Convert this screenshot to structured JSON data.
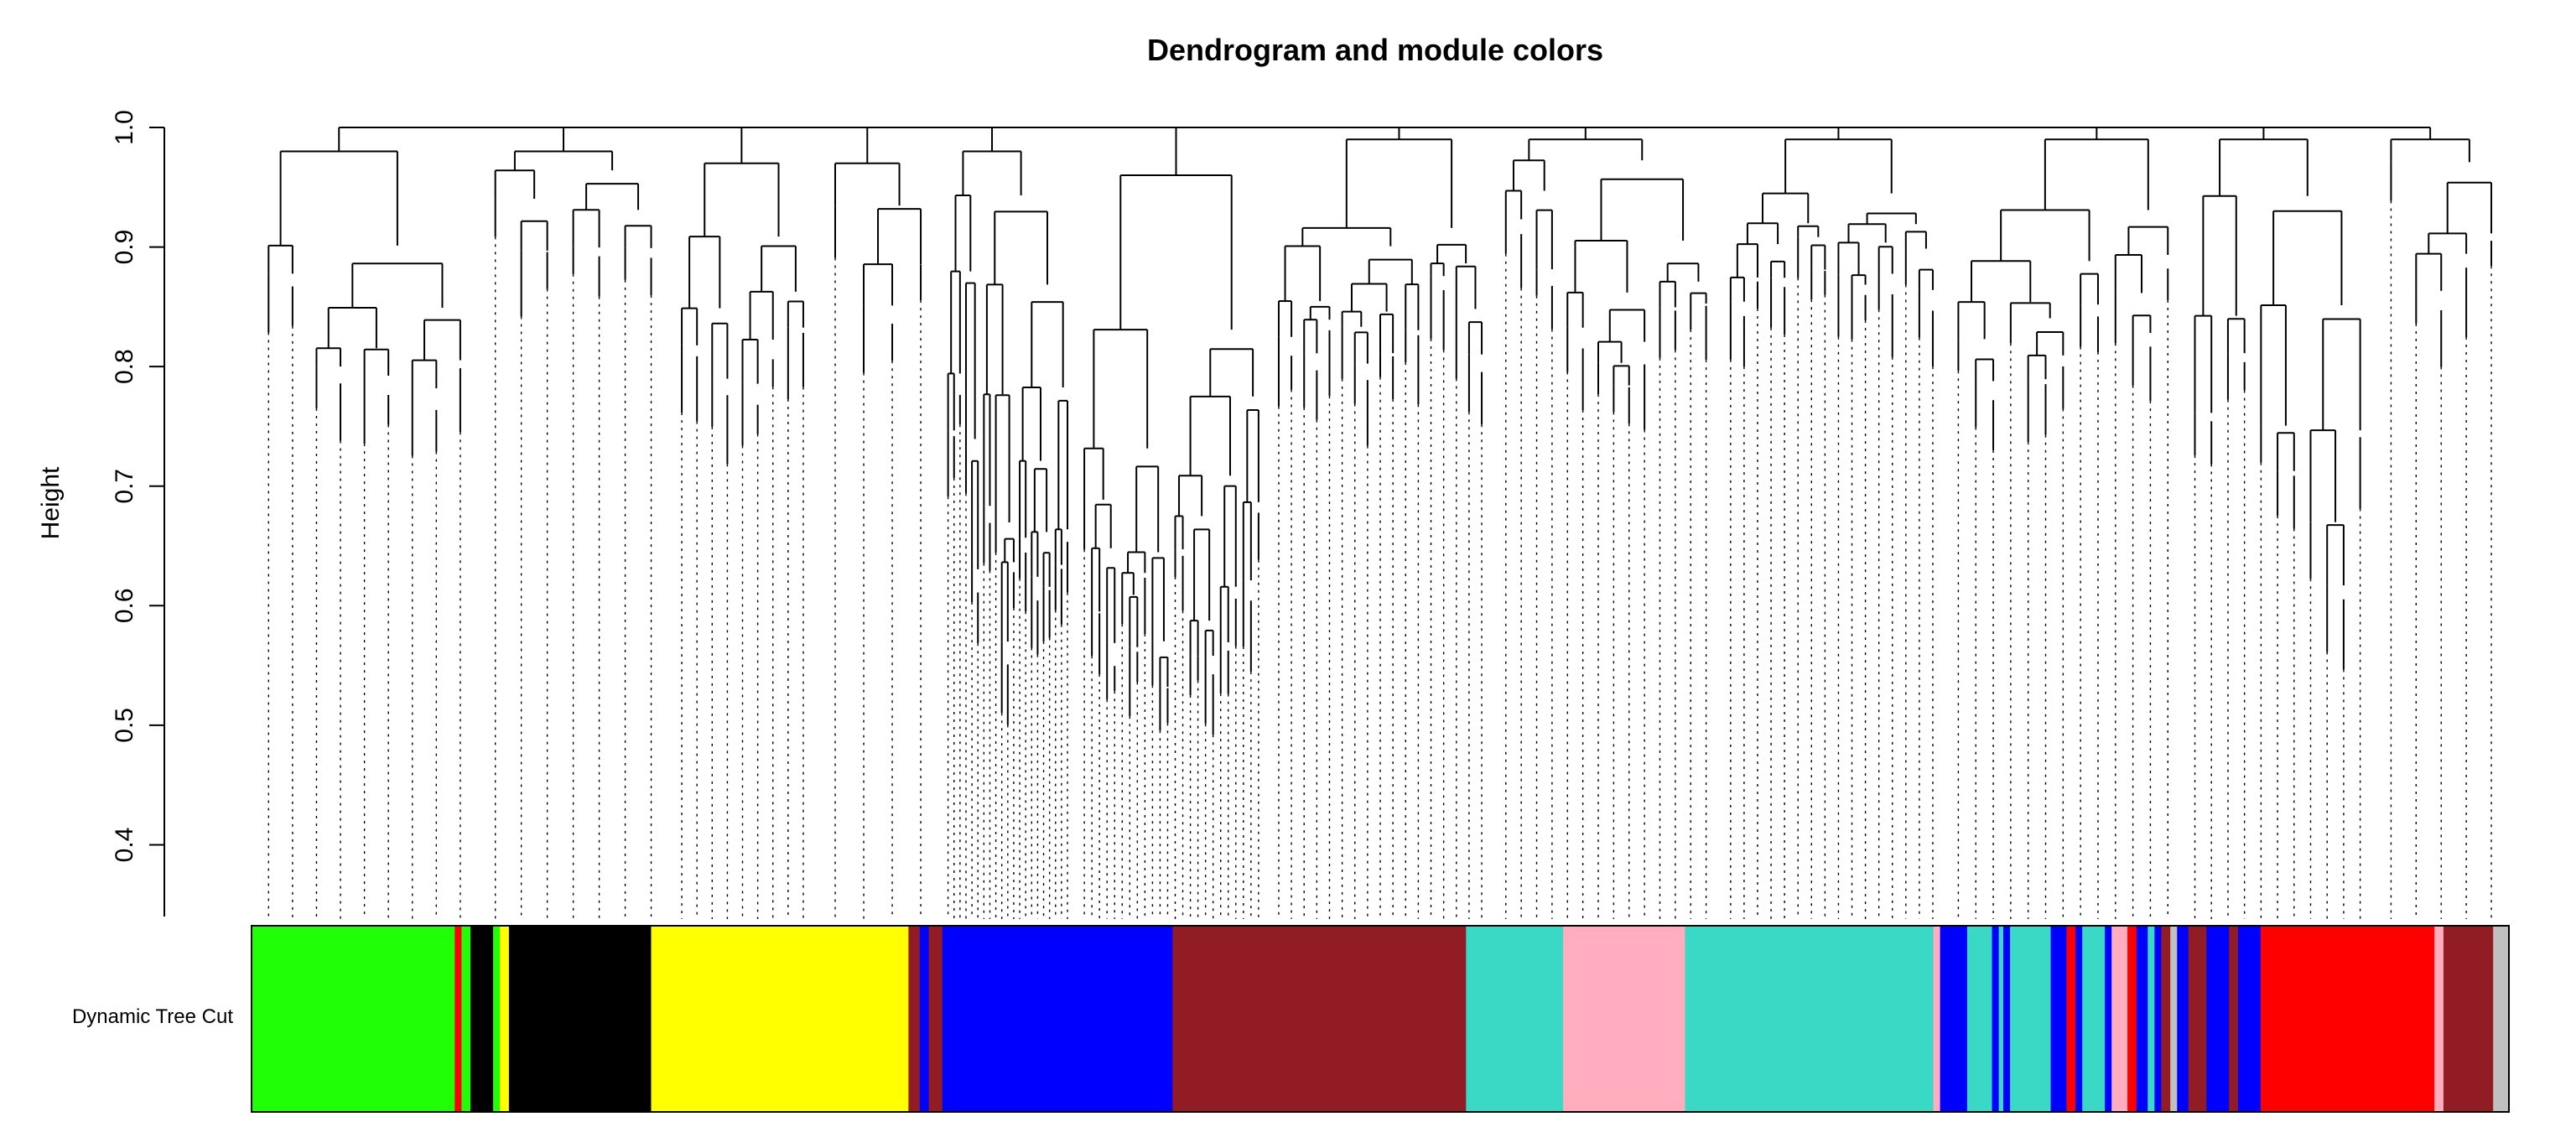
{
  "chart_data": {
    "type": "dendrogram",
    "title": "Dendrogram and module colors",
    "ylabel": "Height",
    "xlabel": "",
    "ylim": [
      0.34,
      1.0
    ],
    "y_ticks": [
      "0.4",
      "0.5",
      "0.6",
      "0.7",
      "0.8",
      "0.9",
      "1.0"
    ],
    "color_row_label": "Dynamic Tree Cut",
    "module_colors": {
      "green": "#21ff06",
      "red": "#ff0000",
      "black": "#000000",
      "yellow": "#ffff00",
      "blue": "#0000ff",
      "brown": "#911c23",
      "turquoise": "#3ad9c6",
      "pink": "#ffadbf",
      "grey": "#c0c0c0"
    },
    "color_segments": [
      {
        "color": "green",
        "from": 0.0,
        "to": 0.09
      },
      {
        "color": "red",
        "from": 0.09,
        "to": 0.093
      },
      {
        "color": "green",
        "from": 0.093,
        "to": 0.097
      },
      {
        "color": "black",
        "from": 0.097,
        "to": 0.107
      },
      {
        "color": "green",
        "from": 0.107,
        "to": 0.11
      },
      {
        "color": "yellow",
        "from": 0.11,
        "to": 0.114
      },
      {
        "color": "black",
        "from": 0.114,
        "to": 0.177
      },
      {
        "color": "yellow",
        "from": 0.177,
        "to": 0.291
      },
      {
        "color": "brown",
        "from": 0.291,
        "to": 0.296
      },
      {
        "color": "blue",
        "from": 0.296,
        "to": 0.3
      },
      {
        "color": "brown",
        "from": 0.3,
        "to": 0.306
      },
      {
        "color": "blue",
        "from": 0.306,
        "to": 0.408
      },
      {
        "color": "brown",
        "from": 0.408,
        "to": 0.538
      },
      {
        "color": "turquoise",
        "from": 0.538,
        "to": 0.581
      },
      {
        "color": "pink",
        "from": 0.581,
        "to": 0.635
      },
      {
        "color": "turquoise",
        "from": 0.635,
        "to": 0.745
      },
      {
        "color": "pink",
        "from": 0.745,
        "to": 0.748
      },
      {
        "color": "blue",
        "from": 0.748,
        "to": 0.76
      },
      {
        "color": "turquoise",
        "from": 0.76,
        "to": 0.771
      },
      {
        "color": "blue",
        "from": 0.771,
        "to": 0.774
      },
      {
        "color": "turquoise",
        "from": 0.774,
        "to": 0.776
      },
      {
        "color": "blue",
        "from": 0.776,
        "to": 0.779
      },
      {
        "color": "turquoise",
        "from": 0.779,
        "to": 0.797
      },
      {
        "color": "blue",
        "from": 0.797,
        "to": 0.804
      },
      {
        "color": "red",
        "from": 0.804,
        "to": 0.808
      },
      {
        "color": "blue",
        "from": 0.808,
        "to": 0.811
      },
      {
        "color": "turquoise",
        "from": 0.811,
        "to": 0.821
      },
      {
        "color": "blue",
        "from": 0.821,
        "to": 0.824
      },
      {
        "color": "pink",
        "from": 0.824,
        "to": 0.831
      },
      {
        "color": "red",
        "from": 0.831,
        "to": 0.835
      },
      {
        "color": "blue",
        "from": 0.835,
        "to": 0.84
      },
      {
        "color": "turquoise",
        "from": 0.84,
        "to": 0.843
      },
      {
        "color": "blue",
        "from": 0.843,
        "to": 0.846
      },
      {
        "color": "brown",
        "from": 0.846,
        "to": 0.85
      },
      {
        "color": "grey",
        "from": 0.85,
        "to": 0.853
      },
      {
        "color": "blue",
        "from": 0.853,
        "to": 0.858
      },
      {
        "color": "brown",
        "from": 0.858,
        "to": 0.866
      },
      {
        "color": "blue",
        "from": 0.866,
        "to": 0.876
      },
      {
        "color": "brown",
        "from": 0.876,
        "to": 0.88
      },
      {
        "color": "blue",
        "from": 0.88,
        "to": 0.89
      },
      {
        "color": "red",
        "from": 0.89,
        "to": 0.967
      },
      {
        "color": "pink",
        "from": 0.967,
        "to": 0.971
      },
      {
        "color": "brown",
        "from": 0.971,
        "to": 0.993
      },
      {
        "color": "grey",
        "from": 0.993,
        "to": 1.0
      }
    ],
    "branches": [
      {
        "at": 0.05,
        "top": 0.98,
        "low": 0.68,
        "n": 9
      },
      {
        "at": 0.15,
        "top": 0.98,
        "low": 0.81,
        "n": 7
      },
      {
        "at": 0.22,
        "top": 0.97,
        "low": 0.57,
        "n": 9
      },
      {
        "at": 0.28,
        "top": 0.97,
        "low": 0.75,
        "n": 4
      },
      {
        "at": 0.33,
        "top": 0.98,
        "low": 0.37,
        "n": 21
      },
      {
        "at": 0.4,
        "top": 0.96,
        "low": 0.39,
        "n": 24
      },
      {
        "at": 0.5,
        "top": 0.99,
        "low": 0.72,
        "n": 17
      },
      {
        "at": 0.6,
        "top": 0.99,
        "low": 0.74,
        "n": 14
      },
      {
        "at": 0.7,
        "top": 0.99,
        "low": 0.8,
        "n": 16
      },
      {
        "at": 0.8,
        "top": 0.99,
        "low": 0.73,
        "n": 13
      },
      {
        "at": 0.91,
        "top": 0.99,
        "low": 0.44,
        "n": 11
      },
      {
        "at": 0.97,
        "top": 0.99,
        "low": 0.76,
        "n": 5
      }
    ]
  }
}
